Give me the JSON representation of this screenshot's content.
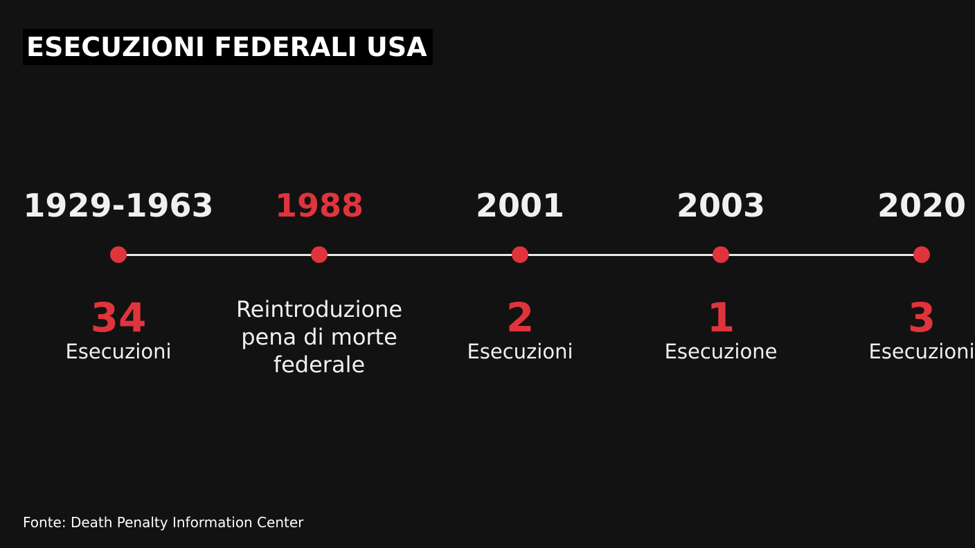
{
  "title": "ESECUZIONI FEDERALI USA",
  "source": "Fonte: Death Penalty Information Center",
  "colors": {
    "background": "#121212",
    "accent": "#e0343c",
    "text": "#f0f0f0",
    "line": "#e8e8e8"
  },
  "events": [
    {
      "year": "1929-1963",
      "number": "34",
      "label": "Esecuzioni",
      "year_color": "#f0f0f0"
    },
    {
      "year": "1988",
      "description": [
        "Reintroduzione",
        "pena di morte",
        "federale"
      ],
      "year_color": "#e0343c"
    },
    {
      "year": "2001",
      "number": "2",
      "label": "Esecuzioni",
      "year_color": "#f0f0f0"
    },
    {
      "year": "2003",
      "number": "1",
      "label": "Esecuzione",
      "year_color": "#f0f0f0"
    },
    {
      "year": "2020",
      "number": "3",
      "label": "Esecuzioni",
      "year_color": "#f0f0f0"
    }
  ]
}
